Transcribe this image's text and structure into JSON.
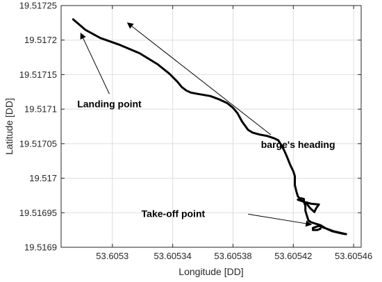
{
  "chart_data": {
    "type": "line",
    "xlabel": "Longitude [DD]",
    "ylabel": "Latitude [DD]",
    "xlim": [
      53.605266,
      53.605465
    ],
    "ylim": [
      19.5169,
      19.51725
    ],
    "x_ticks": [
      53.6053,
      53.60534,
      53.60538,
      53.60542,
      53.60546
    ],
    "x_tick_labels": [
      "53.6053",
      "53.60534",
      "53.60538",
      "53.60542",
      "53.60546"
    ],
    "y_ticks": [
      19.5169,
      19.51695,
      19.517,
      19.51705,
      19.5171,
      19.51715,
      19.5172,
      19.51725
    ],
    "y_tick_labels": [
      "19.5169",
      "19.51695",
      "19.517",
      "19.51705",
      "19.5171",
      "19.51715",
      "19.5172",
      "19.51725"
    ],
    "grid": true,
    "series": [
      {
        "x": [
          53.605274,
          53.605282,
          53.605292,
          53.605305,
          53.605318,
          53.60533,
          53.605338,
          53.605343,
          53.605346,
          53.605349,
          53.605352,
          53.605357,
          53.605365,
          53.605371,
          53.605376,
          53.60538,
          53.605383,
          53.605386,
          53.60539,
          53.605393,
          53.605398,
          53.605403,
          53.605407,
          53.60541,
          53.605412,
          53.605414,
          53.605416,
          53.605418,
          53.60542,
          53.605421,
          53.605421,
          53.605421,
          53.605422,
          53.605423,
          53.605425,
          53.605427,
          53.605429,
          53.605431,
          53.605434,
          53.605435,
          53.605436,
          53.605437,
          53.605432,
          53.605427,
          53.605423,
          53.605425,
          53.605427,
          53.605427,
          53.605428,
          53.605428,
          53.605429,
          53.60543,
          53.605432,
          53.605438,
          53.605441,
          53.605446,
          53.605452,
          53.605455,
          53.605447,
          53.605437,
          53.605433,
          53.605433,
          53.605436,
          53.605438
        ],
        "y": [
          19.51723,
          19.517215,
          19.517203,
          19.517193,
          19.517181,
          19.517165,
          19.517151,
          19.51714,
          19.517132,
          19.517127,
          19.517124,
          19.517122,
          19.517119,
          19.517114,
          19.517109,
          19.517102,
          19.517094,
          19.517082,
          19.51707,
          19.517066,
          19.517063,
          19.517061,
          19.517058,
          19.517055,
          19.517048,
          19.51704,
          19.51703,
          19.517019,
          19.51701,
          19.517003,
          19.516997,
          19.51699,
          19.516981,
          19.516974,
          19.516968,
          19.516966,
          19.516963,
          19.516957,
          19.516951,
          19.516956,
          19.516959,
          19.516962,
          19.516963,
          19.516966,
          19.516969,
          19.516971,
          19.51697,
          19.516966,
          19.51696,
          19.516953,
          19.516946,
          19.516939,
          19.516936,
          19.516932,
          19.516928,
          19.516923,
          19.51692,
          19.516919,
          19.516923,
          19.516931,
          19.516928,
          19.516925,
          19.516925,
          19.516927
        ],
        "color": "#000000"
      }
    ],
    "annotations": [
      {
        "text": "Landing point",
        "arrow_from": [
          53.605298,
          19.517122
        ],
        "arrow_to": [
          53.605279,
          19.51721
        ]
      },
      {
        "text": "barge's heading",
        "arrow_from": [
          53.605405,
          19.517063
        ],
        "arrow_to": [
          53.60531,
          19.517225
        ]
      },
      {
        "text": "Take-off point",
        "arrow_from": [
          53.60539,
          19.516948
        ],
        "arrow_to": [
          53.605432,
          19.516933
        ]
      }
    ]
  }
}
